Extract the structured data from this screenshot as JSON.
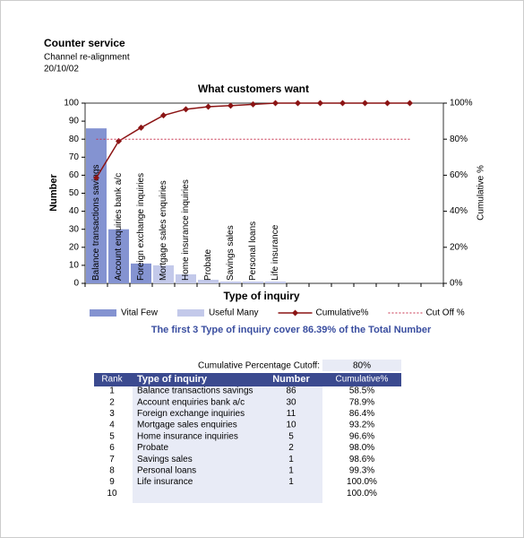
{
  "header": {
    "title": "Counter service",
    "subtitle": "Channel re-alignment",
    "date": "20/10/02"
  },
  "chart_data": {
    "type": "bar",
    "title": "What customers want",
    "x_label": "Type of inquiry",
    "y_label": "Number",
    "y2_label": "Cumulative %",
    "categories": [
      "Balance transactions savings",
      "Account enquiries bank a/c",
      "Foreign exchange inquiries",
      "Mortgage sales enquiries",
      "Home insurance inquiries",
      "Probate",
      "Savings sales",
      "Personal loans",
      "Life insurance",
      null,
      null,
      null,
      null,
      null,
      null,
      null
    ],
    "series": [
      {
        "name": "Vital Few",
        "type": "bar",
        "color": "#8493d1",
        "values": [
          86,
          30,
          11,
          null,
          null,
          null,
          null,
          null,
          null,
          null,
          null,
          null,
          null,
          null,
          null,
          null
        ]
      },
      {
        "name": "Useful Many",
        "type": "bar",
        "color": "#c3c9ea",
        "values": [
          null,
          null,
          null,
          10,
          5,
          2,
          1,
          1,
          1,
          null,
          null,
          null,
          null,
          null,
          null,
          null
        ]
      },
      {
        "name": "Cumulative%",
        "type": "line",
        "axis": "y2",
        "color": "#8b1414",
        "marker": "diamond",
        "values": [
          58.5,
          78.9,
          86.4,
          93.2,
          96.6,
          98.0,
          98.6,
          99.3,
          100,
          100,
          100,
          100,
          100,
          100,
          100,
          null
        ]
      },
      {
        "name": "Cut Off %",
        "type": "line",
        "axis": "y2",
        "color": "#c8324e",
        "style": "dotted",
        "values": [
          80,
          80,
          80,
          80,
          80,
          80,
          80,
          80,
          80,
          80,
          80,
          80,
          80,
          80,
          80,
          null
        ]
      }
    ],
    "ylim": [
      0,
      100
    ],
    "yticks": [
      0,
      10,
      20,
      30,
      40,
      50,
      60,
      70,
      80,
      90,
      100
    ],
    "y2lim": [
      0,
      100
    ],
    "y2ticks": [
      {
        "value": 0,
        "label": "0%"
      },
      {
        "value": 20,
        "label": "20%"
      },
      {
        "value": 40,
        "label": "40%"
      },
      {
        "value": 60,
        "label": "60%"
      },
      {
        "value": 80,
        "label": "80%"
      },
      {
        "value": 100,
        "label": "100%"
      }
    ]
  },
  "summary": "The first 3 Type of inquiry cover 86.39% of the Total Number",
  "table": {
    "cutoff_label": "Cumulative Percentage Cutoff:",
    "cutoff_value": "80%",
    "columns": [
      "Rank",
      "Type of inquiry",
      "Number",
      "Cumulative%"
    ],
    "rows": [
      [
        1,
        "Balance transactions savings",
        86,
        "58.5%"
      ],
      [
        2,
        "Account enquiries bank a/c",
        30,
        "78.9%"
      ],
      [
        3,
        "Foreign exchange inquiries",
        11,
        "86.4%"
      ],
      [
        4,
        "Mortgage sales enquiries",
        10,
        "93.2%"
      ],
      [
        5,
        "Home insurance inquiries",
        5,
        "96.6%"
      ],
      [
        6,
        "Probate",
        2,
        "98.0%"
      ],
      [
        7,
        "Savings sales",
        1,
        "98.6%"
      ],
      [
        8,
        "Personal loans",
        1,
        "99.3%"
      ],
      [
        9,
        "Life insurance",
        1,
        "100.0%"
      ],
      [
        10,
        null,
        null,
        "100.0%"
      ]
    ]
  }
}
